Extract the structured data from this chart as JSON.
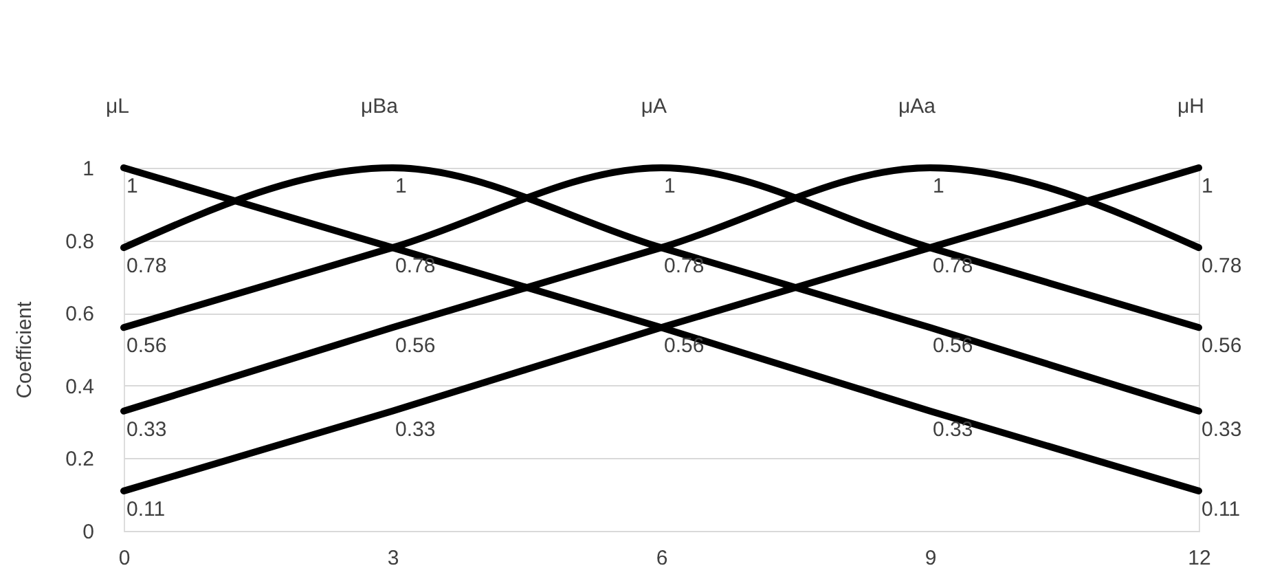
{
  "chart_data": {
    "type": "line",
    "ylabel": "Coefficient",
    "x": [
      0,
      3,
      6,
      9,
      12
    ],
    "series": [
      {
        "name": "μL",
        "color": "#000000",
        "values": [
          1,
          0.78,
          0.56,
          0.33,
          0.11
        ],
        "value_labels": [
          "1",
          "0.78",
          "0.56",
          "0.33",
          "0.11"
        ]
      },
      {
        "name": "μBa",
        "color": "#000000",
        "values": [
          0.78,
          1,
          0.78,
          0.56,
          0.33
        ],
        "value_labels": [
          "0.78",
          "1",
          "0.78",
          "0.56",
          "0.33"
        ]
      },
      {
        "name": "μA",
        "color": "#000000",
        "values": [
          0.56,
          0.78,
          1,
          0.78,
          0.56
        ],
        "value_labels": [
          "0.56",
          null,
          "1",
          "0.78",
          "0.56"
        ]
      },
      {
        "name": "μAa",
        "color": "#000000",
        "values": [
          0.33,
          0.56,
          0.78,
          1,
          0.78
        ],
        "value_labels": [
          "0.33",
          "0.56",
          null,
          "1",
          "0.78"
        ]
      },
      {
        "name": "μH",
        "color": "#000000",
        "values": [
          0.11,
          0.33,
          0.56,
          0.78,
          1
        ],
        "value_labels": [
          "0.11",
          "0.33",
          null,
          null,
          "1"
        ]
      }
    ],
    "xlim": [
      0,
      12
    ],
    "xticks": [
      0,
      3,
      6,
      9,
      12
    ],
    "ylim": [
      0,
      1
    ],
    "yticks": [
      0,
      0.2,
      0.4,
      0.6,
      0.8,
      1
    ],
    "grid": "y",
    "line_style": "solid",
    "marker": "none"
  }
}
